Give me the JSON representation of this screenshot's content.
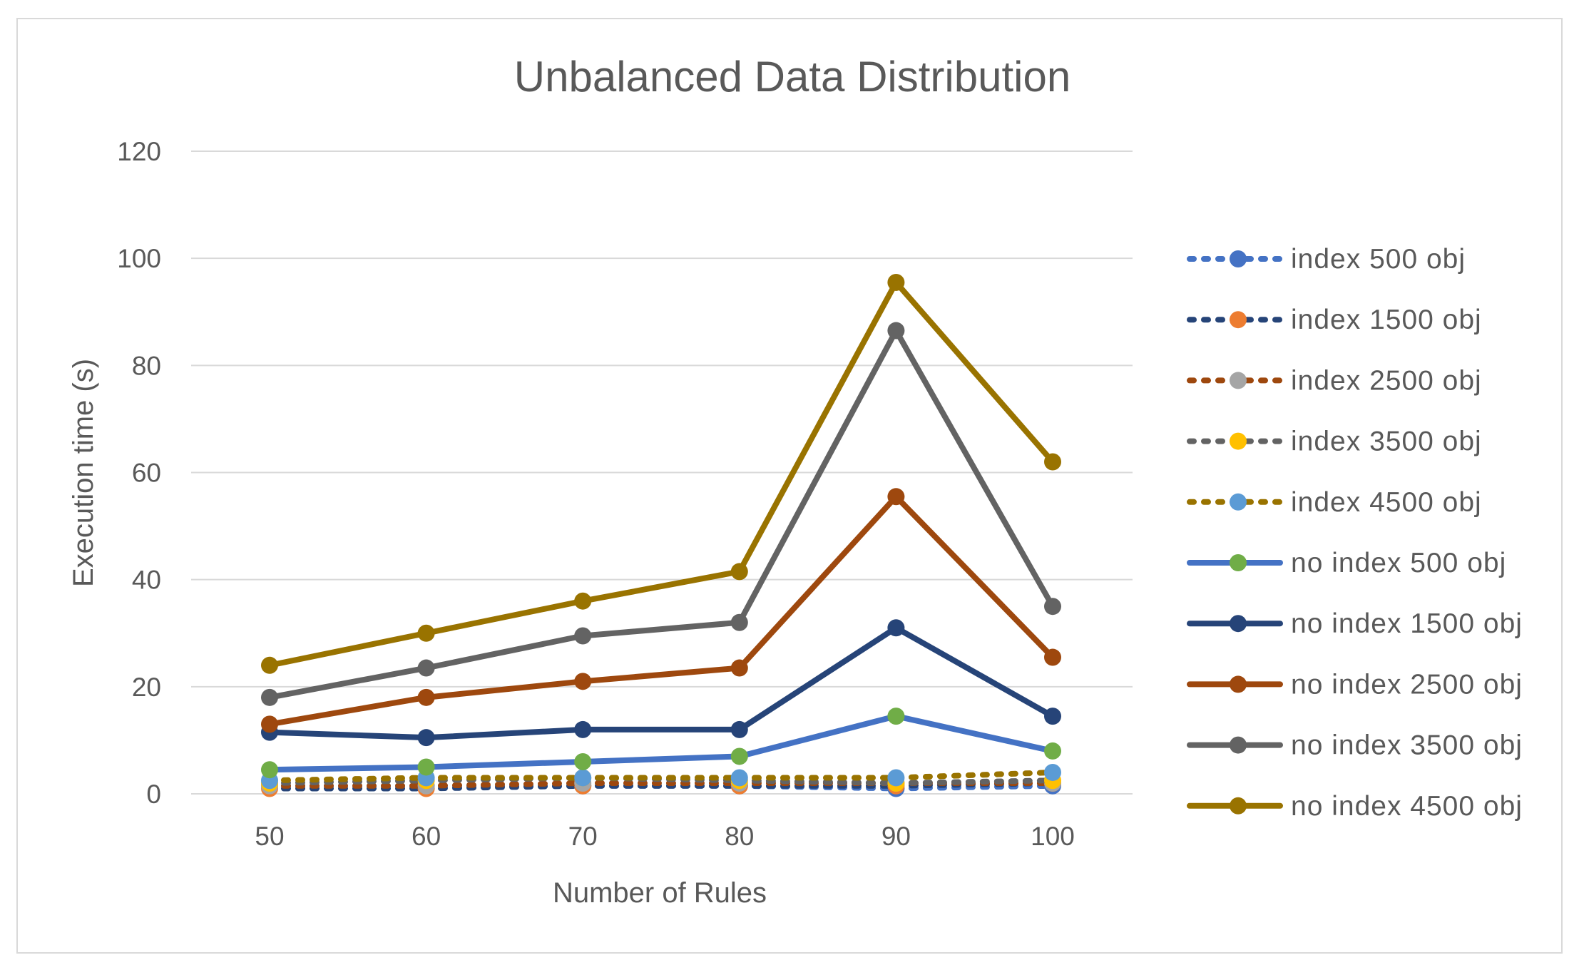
{
  "chart_data": {
    "type": "line",
    "title": "Unbalanced Data Distribution",
    "xlabel": "Number of Rules",
    "ylabel": "Execution time (s)",
    "categories": [
      "50",
      "60",
      "70",
      "80",
      "90",
      "100"
    ],
    "ylim": [
      0,
      120
    ],
    "yticks": [
      "0",
      "20",
      "40",
      "60",
      "80",
      "100",
      "120"
    ],
    "grid": true,
    "legend_position": "right",
    "series": [
      {
        "name": "index 500 obj",
        "style": "dotted",
        "line_color": "#4472C4",
        "marker_color": "#4472C4",
        "values": [
          1.5,
          1.5,
          1.5,
          1.5,
          1,
          1.5
        ]
      },
      {
        "name": "index 1500 obj",
        "style": "dotted",
        "line_color": "#264478",
        "marker_color": "#ED7D31",
        "values": [
          1,
          1,
          1.5,
          1.5,
          1.5,
          2
        ]
      },
      {
        "name": "index 2500 obj",
        "style": "dotted",
        "line_color": "#9E480E",
        "marker_color": "#A5A5A5",
        "values": [
          1.5,
          1.5,
          2,
          2,
          2,
          2
        ]
      },
      {
        "name": "index 3500 obj",
        "style": "dotted",
        "line_color": "#636363",
        "marker_color": "#FFC000",
        "values": [
          2,
          2.5,
          3,
          2.5,
          2,
          2.5
        ]
      },
      {
        "name": "index 4500 obj",
        "style": "dotted",
        "line_color": "#997300",
        "marker_color": "#5B9BD5",
        "values": [
          2.5,
          3,
          3,
          3,
          3,
          4
        ]
      },
      {
        "name": "no index 500 obj",
        "style": "solid",
        "line_color": "#4472C4",
        "marker_color": "#70AD47",
        "values": [
          4.5,
          5,
          6,
          7,
          14.5,
          8
        ]
      },
      {
        "name": "no index 1500 obj",
        "style": "solid",
        "line_color": "#264478",
        "marker_color": "#264478",
        "values": [
          11.5,
          10.5,
          12,
          12,
          31,
          14.5
        ]
      },
      {
        "name": "no index 2500 obj",
        "style": "solid",
        "line_color": "#9E480E",
        "marker_color": "#9E480E",
        "values": [
          13,
          18,
          21,
          23.5,
          55.5,
          25.5
        ]
      },
      {
        "name": "no index 3500 obj",
        "style": "solid",
        "line_color": "#636363",
        "marker_color": "#636363",
        "values": [
          18,
          23.5,
          29.5,
          32,
          86.5,
          35
        ]
      },
      {
        "name": "no index 4500 obj",
        "style": "solid",
        "line_color": "#997300",
        "marker_color": "#997300",
        "values": [
          24,
          30,
          36,
          41.5,
          95.5,
          62
        ]
      }
    ]
  }
}
